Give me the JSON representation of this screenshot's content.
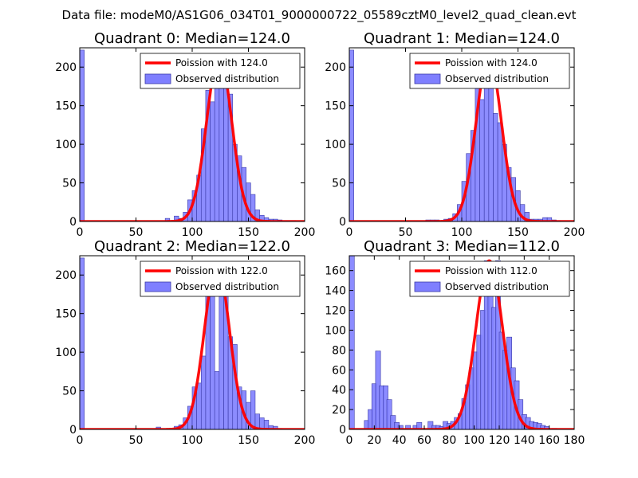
{
  "suptitle": "Data file: modeM0/AS1G06_034T01_9000000722_05589cztM0_level2_quad_clean.evt",
  "colors": {
    "bars": "#7f7fff",
    "bar_edge": "#3a3aa8",
    "curve": "#ff0000",
    "axis": "#000000"
  },
  "chart_data": [
    {
      "type": "bar",
      "title": "Quadrant 0: Median=124.0",
      "xlim": [
        0,
        200
      ],
      "ylim": [
        0,
        225
      ],
      "xticks": [
        0,
        50,
        100,
        150,
        200
      ],
      "yticks": [
        0,
        50,
        100,
        150,
        200
      ],
      "legend": {
        "line_label": "Poission with 124.0",
        "bars_label": "Observed distribution",
        "placement": "top-right"
      },
      "poisson_mean": 124.0,
      "poisson_peak": 215,
      "hist_x": [
        0,
        76,
        84,
        88,
        92,
        96,
        100,
        104,
        108,
        112,
        116,
        120,
        124,
        128,
        132,
        136,
        140,
        144,
        148,
        152,
        156,
        160,
        164,
        168,
        172,
        176,
        180,
        184,
        188
      ],
      "hist_y": [
        222,
        4,
        7,
        4,
        12,
        28,
        40,
        60,
        120,
        170,
        155,
        190,
        210,
        195,
        165,
        100,
        85,
        70,
        50,
        35,
        15,
        8,
        5,
        3,
        3,
        2,
        1,
        1,
        1
      ]
    },
    {
      "type": "bar",
      "title": "Quadrant 1: Median=124.0",
      "xlim": [
        0,
        200
      ],
      "ylim": [
        0,
        225
      ],
      "xticks": [
        0,
        50,
        100,
        150,
        200
      ],
      "yticks": [
        0,
        50,
        100,
        150,
        200
      ],
      "legend": {
        "line_label": "Poission with 124.0",
        "bars_label": "Observed distribution",
        "placement": "top-right"
      },
      "poisson_mean": 124.0,
      "poisson_peak": 215,
      "hist_x": [
        0,
        68,
        72,
        76,
        84,
        88,
        92,
        96,
        100,
        104,
        108,
        112,
        116,
        120,
        124,
        128,
        132,
        136,
        140,
        144,
        148,
        152,
        156,
        160,
        164,
        168,
        172,
        176,
        180,
        184
      ],
      "hist_y": [
        222,
        2,
        2,
        2,
        3,
        4,
        10,
        22,
        52,
        88,
        118,
        178,
        158,
        198,
        212,
        140,
        128,
        100,
        70,
        57,
        40,
        22,
        12,
        3,
        3,
        3,
        5,
        5,
        2,
        1
      ]
    },
    {
      "type": "bar",
      "title": "Quadrant 2: Median=122.0",
      "xlim": [
        0,
        200
      ],
      "ylim": [
        0,
        225
      ],
      "xticks": [
        0,
        50,
        100,
        150,
        200
      ],
      "yticks": [
        0,
        50,
        100,
        150,
        200
      ],
      "legend": {
        "line_label": "Poission with 122.0",
        "bars_label": "Observed distribution",
        "placement": "top-right"
      },
      "poisson_mean": 122.0,
      "poisson_peak": 215,
      "hist_x": [
        0,
        68,
        84,
        88,
        92,
        96,
        100,
        104,
        108,
        112,
        116,
        120,
        124,
        128,
        132,
        136,
        140,
        144,
        148,
        152,
        156,
        160,
        164,
        168,
        172,
        176
      ],
      "hist_y": [
        222,
        3,
        4,
        6,
        15,
        30,
        55,
        60,
        95,
        175,
        215,
        75,
        185,
        205,
        120,
        110,
        55,
        50,
        35,
        50,
        20,
        15,
        12,
        5,
        4,
        1
      ]
    },
    {
      "type": "bar",
      "title": "Quadrant 3: Median=112.0",
      "xlim": [
        0,
        180
      ],
      "ylim": [
        0,
        175
      ],
      "xticks": [
        0,
        20,
        40,
        60,
        80,
        100,
        120,
        140,
        160,
        180
      ],
      "yticks": [
        0,
        20,
        40,
        60,
        80,
        100,
        120,
        140,
        160
      ],
      "legend": {
        "line_label": "Poission with 112.0",
        "bars_label": "Observed distribution",
        "placement": "top-right"
      },
      "poisson_mean": 112.0,
      "poisson_peak": 170,
      "hist_x": [
        0,
        12,
        15,
        18,
        21,
        24,
        27,
        30,
        33,
        36,
        39,
        45,
        51,
        54,
        63,
        66,
        69,
        72,
        75,
        78,
        81,
        84,
        87,
        90,
        93,
        96,
        99,
        102,
        105,
        108,
        111,
        114,
        117,
        120,
        123,
        126,
        129,
        132,
        135,
        138,
        141,
        144,
        147,
        150,
        153,
        156,
        162
      ],
      "hist_y": [
        175,
        9,
        20,
        46,
        79,
        44,
        44,
        30,
        14,
        7,
        4,
        4,
        4,
        7,
        8,
        4,
        4,
        3,
        8,
        6,
        8,
        12,
        16,
        31,
        45,
        62,
        78,
        95,
        120,
        170,
        138,
        123,
        170,
        98,
        80,
        93,
        62,
        49,
        30,
        15,
        12,
        8,
        7,
        6,
        4,
        3,
        1
      ]
    }
  ]
}
